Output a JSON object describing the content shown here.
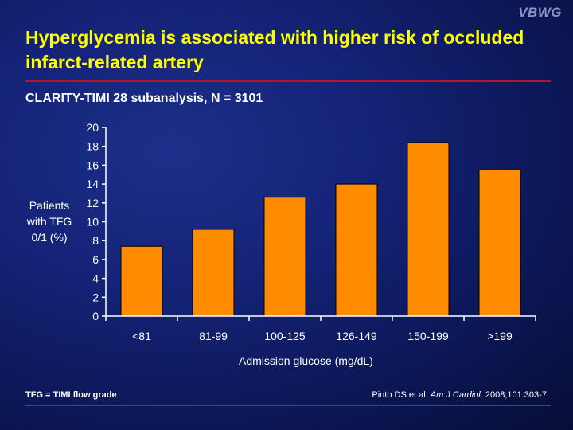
{
  "logo": "VBWG",
  "title": "Hyperglycemia is associated with higher risk of occluded infarct-related artery",
  "subtitle": "CLARITY-TIMI 28 subanalysis, N = 3101",
  "footnote": "TFG = TIMI flow grade",
  "citation": {
    "authors": "Pinto DS et al. ",
    "journal": "Am J Cardiol.",
    "details": " 2008;101:303-7."
  },
  "colors": {
    "title": "#ffff00",
    "bar": "#ff8c00",
    "rule": "#b0162e"
  },
  "chart_data": {
    "type": "bar",
    "title": "",
    "xlabel": "Admission glucose (mg/dL)",
    "ylabel": "Patients with TFG 0/1 (%)",
    "ylabel_lines": [
      "Patients",
      "with TFG",
      "0/1 (%)"
    ],
    "categories": [
      "<81",
      "81-99",
      "100-125",
      "126-149",
      "150-199",
      ">199"
    ],
    "values": [
      7.4,
      9.2,
      12.6,
      14.0,
      18.4,
      15.5
    ],
    "ylim": [
      0,
      20
    ],
    "yticks": [
      0,
      2,
      4,
      6,
      8,
      10,
      12,
      14,
      16,
      18,
      20
    ],
    "grid": false,
    "legend": "none"
  }
}
